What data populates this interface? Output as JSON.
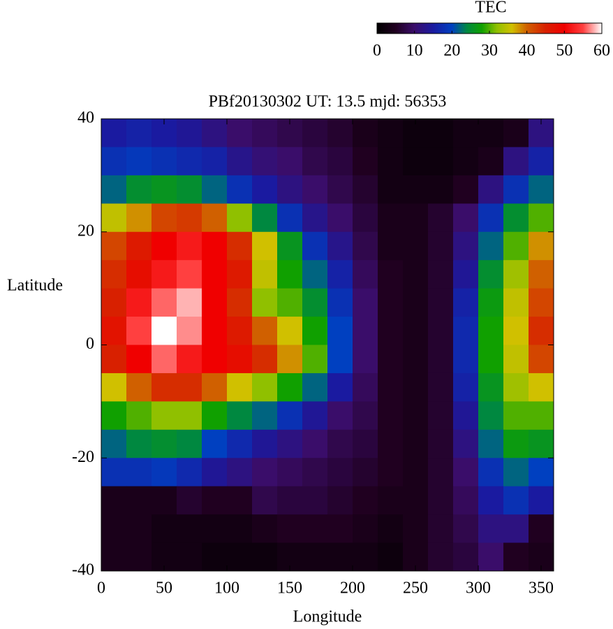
{
  "chart_data": {
    "type": "heatmap",
    "title": "PBf20130302  UT: 13.5  mjd: 56353",
    "x_label": "Longitude",
    "y_label": "Latitude",
    "colorbar_title": "TEC",
    "xlim": [
      0,
      360
    ],
    "ylim": [
      -40,
      40
    ],
    "xticks": [
      0,
      50,
      100,
      150,
      200,
      250,
      300,
      350
    ],
    "yticks": [
      -40,
      -20,
      0,
      20,
      40
    ],
    "colorlim": [
      0,
      60
    ],
    "colorticks": [
      0,
      10,
      20,
      30,
      40,
      50,
      60
    ],
    "colormap": [
      {
        "value": 0,
        "color": "#000000"
      },
      {
        "value": 5,
        "color": "#200020"
      },
      {
        "value": 10,
        "color": "#3a0d6a"
      },
      {
        "value": 15,
        "color": "#1a1aa0"
      },
      {
        "value": 20,
        "color": "#0040c0"
      },
      {
        "value": 24,
        "color": "#008840"
      },
      {
        "value": 28,
        "color": "#10a000"
      },
      {
        "value": 32,
        "color": "#90c000"
      },
      {
        "value": 36,
        "color": "#d0c000"
      },
      {
        "value": 40,
        "color": "#d06000"
      },
      {
        "value": 45,
        "color": "#d82000"
      },
      {
        "value": 50,
        "color": "#f00000"
      },
      {
        "value": 55,
        "color": "#ff4040"
      },
      {
        "value": 60,
        "color": "#ffffff"
      }
    ],
    "x": [
      10,
      30,
      50,
      70,
      90,
      110,
      130,
      150,
      170,
      190,
      210,
      230,
      250,
      270,
      290,
      310,
      330,
      350
    ],
    "y": [
      37.5,
      32.5,
      27.5,
      22.5,
      17.5,
      12.5,
      7.5,
      2.5,
      -2.5,
      -7.5,
      -12.5,
      -17.5,
      -22.5,
      -27.5,
      -32.5,
      -37.5
    ],
    "values": [
      [
        15,
        16,
        15,
        14,
        12,
        10,
        9,
        8,
        7,
        6,
        4,
        3,
        2,
        2,
        3,
        3,
        4,
        12
      ],
      [
        18,
        19,
        18,
        17,
        16,
        13,
        11,
        10,
        8,
        7,
        5,
        3,
        2,
        2,
        3,
        4,
        12,
        16
      ],
      [
        22,
        25,
        26,
        25,
        22,
        18,
        15,
        12,
        10,
        8,
        6,
        3,
        3,
        3,
        5,
        12,
        18,
        22
      ],
      [
        35,
        38,
        42,
        43,
        40,
        32,
        24,
        18,
        13,
        10,
        7,
        4,
        4,
        6,
        10,
        18,
        25,
        30
      ],
      [
        42,
        46,
        50,
        52,
        50,
        44,
        36,
        26,
        18,
        13,
        8,
        4,
        4,
        6,
        12,
        22,
        30,
        38
      ],
      [
        44,
        48,
        52,
        55,
        50,
        46,
        35,
        28,
        22,
        16,
        9,
        5,
        4,
        6,
        14,
        25,
        33,
        40
      ],
      [
        45,
        52,
        56,
        58,
        50,
        44,
        32,
        30,
        25,
        18,
        10,
        5,
        4,
        6,
        16,
        27,
        35,
        42
      ],
      [
        47,
        55,
        60,
        57,
        50,
        46,
        40,
        36,
        28,
        20,
        10,
        5,
        4,
        6,
        17,
        28,
        36,
        44
      ],
      [
        45,
        50,
        56,
        52,
        50,
        48,
        44,
        38,
        30,
        20,
        10,
        5,
        4,
        6,
        17,
        28,
        35,
        42
      ],
      [
        36,
        40,
        44,
        44,
        40,
        36,
        32,
        28,
        22,
        15,
        9,
        5,
        4,
        6,
        16,
        26,
        33,
        36
      ],
      [
        28,
        30,
        32,
        32,
        28,
        24,
        22,
        18,
        14,
        10,
        8,
        5,
        4,
        6,
        14,
        24,
        30,
        30
      ],
      [
        22,
        24,
        25,
        24,
        20,
        17,
        14,
        12,
        10,
        8,
        7,
        5,
        4,
        6,
        12,
        22,
        27,
        26
      ],
      [
        18,
        18,
        19,
        17,
        14,
        12,
        10,
        9,
        8,
        7,
        6,
        5,
        4,
        6,
        10,
        18,
        22,
        20
      ],
      [
        4,
        4,
        4,
        6,
        5,
        5,
        8,
        7,
        7,
        6,
        5,
        4,
        4,
        6,
        9,
        15,
        18,
        15
      ],
      [
        4,
        4,
        3,
        3,
        3,
        3,
        4,
        5,
        5,
        5,
        4,
        3,
        4,
        6,
        8,
        12,
        12,
        5
      ],
      [
        4,
        4,
        3,
        3,
        2,
        2,
        2,
        3,
        3,
        3,
        3,
        2,
        4,
        6,
        7,
        10,
        5,
        4
      ]
    ]
  }
}
